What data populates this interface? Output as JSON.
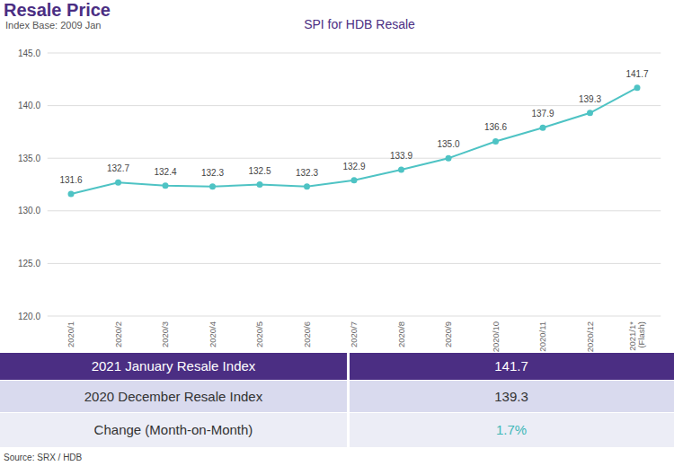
{
  "header": {
    "title": "Resale Price",
    "subtitle": "Index Base: 2009 Jan"
  },
  "chart_data": {
    "type": "line",
    "title": "SPI for HDB Resale",
    "categories": [
      "2020/1",
      "2020/2",
      "2020/3",
      "2020/4",
      "2020/5",
      "2020/6",
      "2020/7",
      "2020/8",
      "2020/9",
      "2020/10",
      "2020/11",
      "2020/12",
      "2021/1*\n(Flash)"
    ],
    "values": [
      131.6,
      132.7,
      132.4,
      132.3,
      132.5,
      132.3,
      132.9,
      133.9,
      135.0,
      136.6,
      137.9,
      139.3,
      141.7
    ],
    "value_labels": [
      "131.6",
      "132.7",
      "132.4",
      "132.3",
      "132.5",
      "132.3",
      "132.9",
      "133.9",
      "135.0",
      "136.6",
      "137.9",
      "139.3",
      "141.7"
    ],
    "color": "#4ec3c4",
    "marker": "circle",
    "data_labels": true,
    "grid": true,
    "ylim": [
      120,
      145
    ],
    "yticks": [
      {
        "value": 120,
        "label": "120.0"
      },
      {
        "value": 125,
        "label": "125.0"
      },
      {
        "value": 130,
        "label": "130.0"
      },
      {
        "value": 135,
        "label": "135.0"
      },
      {
        "value": 140,
        "label": "140.0"
      },
      {
        "value": 145,
        "label": "145.0"
      }
    ]
  },
  "table": {
    "rows": [
      [
        "2021 January Resale Index",
        "141.7"
      ],
      [
        "2020 December Resale Index",
        "139.3"
      ],
      [
        "Change (Month-on-Month)",
        "1.7%"
      ]
    ]
  },
  "source": "Source: SRX / HDB"
}
